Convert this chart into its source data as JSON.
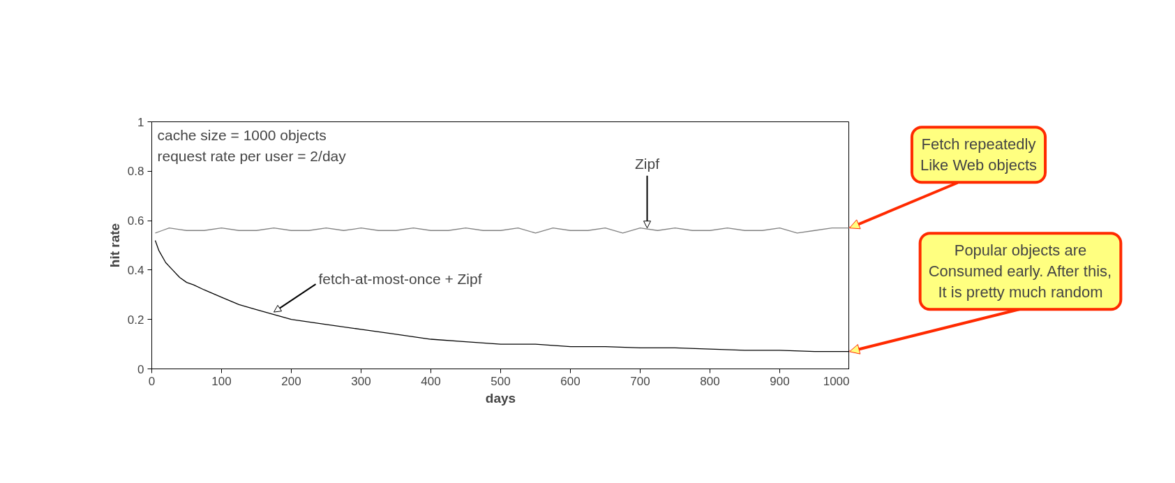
{
  "chart_data": {
    "type": "line",
    "xlabel": "days",
    "ylabel": "hit rate",
    "xlim": [
      0,
      1000
    ],
    "ylim": [
      0,
      1
    ],
    "xticks": [
      0,
      100,
      200,
      300,
      400,
      500,
      600,
      700,
      800,
      900,
      1000
    ],
    "yticks": [
      0,
      0.2,
      0.4,
      0.6,
      0.8,
      1
    ],
    "grid": false,
    "legend": false,
    "marker": "none",
    "line_style": "solid",
    "series": [
      {
        "color": "#808080",
        "x": [
          5,
          15,
          25,
          50,
          75,
          100,
          125,
          150,
          175,
          200,
          225,
          250,
          275,
          300,
          325,
          350,
          375,
          400,
          425,
          450,
          475,
          500,
          525,
          550,
          575,
          600,
          625,
          650,
          675,
          700,
          725,
          750,
          775,
          800,
          825,
          850,
          875,
          900,
          925,
          950,
          975,
          1000
        ],
        "values": [
          0.55,
          0.56,
          0.57,
          0.56,
          0.56,
          0.57,
          0.56,
          0.56,
          0.57,
          0.56,
          0.56,
          0.57,
          0.56,
          0.57,
          0.56,
          0.56,
          0.57,
          0.56,
          0.56,
          0.57,
          0.56,
          0.56,
          0.57,
          0.55,
          0.57,
          0.56,
          0.56,
          0.57,
          0.55,
          0.57,
          0.56,
          0.57,
          0.56,
          0.56,
          0.57,
          0.56,
          0.56,
          0.57,
          0.55,
          0.56,
          0.57,
          0.57
        ]
      },
      {
        "color": "#000000",
        "x": [
          5,
          10,
          20,
          30,
          40,
          50,
          60,
          75,
          100,
          125,
          150,
          175,
          200,
          250,
          300,
          350,
          400,
          450,
          500,
          550,
          600,
          650,
          700,
          750,
          800,
          850,
          900,
          950,
          1000
        ],
        "values": [
          0.52,
          0.48,
          0.43,
          0.4,
          0.37,
          0.35,
          0.34,
          0.32,
          0.29,
          0.26,
          0.24,
          0.22,
          0.2,
          0.18,
          0.16,
          0.14,
          0.12,
          0.11,
          0.1,
          0.1,
          0.09,
          0.09,
          0.085,
          0.085,
          0.08,
          0.075,
          0.075,
          0.07,
          0.07
        ]
      }
    ],
    "annotations": [
      "cache size = 1000 objects",
      "request rate per user = 2/day",
      {
        "text": "Zipf",
        "x": 710,
        "y": 0.57
      },
      {
        "text": "fetch-at-most-once + Zipf",
        "x": 175,
        "y": 0.23
      },
      {
        "text": "Fetch repeatedly\nLike Web objects",
        "x": 1000,
        "y": 0.57
      },
      {
        "text": "Popular objects are\nConsumed early. After this,\nIt is pretty much random",
        "x": 1000,
        "y": 0.07
      }
    ]
  }
}
